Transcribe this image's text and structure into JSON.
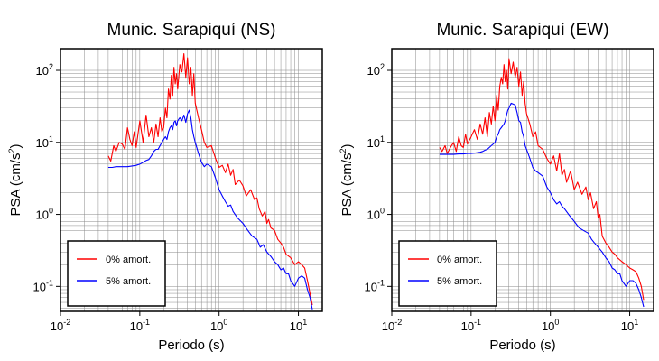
{
  "chart_data": [
    {
      "type": "line",
      "title": "Munic. Sarapiquí (NS)",
      "xlabel": "Periodo (s)",
      "ylabel": "PSA (cm/s²)",
      "xscale": "log",
      "yscale": "log",
      "xlim": [
        0.01,
        20
      ],
      "ylim": [
        0.045,
        200
      ],
      "grid": true,
      "legend_position": "bottom-left",
      "x_ticks": [
        "10-2",
        "10-1",
        "100",
        "101"
      ],
      "y_ticks": [
        "10-1",
        "100",
        "101",
        "102"
      ],
      "series": [
        {
          "name": "0% amort.",
          "color": "#ff0000",
          "x": [
            0.04,
            0.043,
            0.047,
            0.05,
            0.055,
            0.06,
            0.065,
            0.07,
            0.075,
            0.08,
            0.085,
            0.09,
            0.1,
            0.11,
            0.12,
            0.13,
            0.14,
            0.15,
            0.16,
            0.17,
            0.18,
            0.19,
            0.2,
            0.21,
            0.22,
            0.23,
            0.24,
            0.25,
            0.26,
            0.27,
            0.28,
            0.29,
            0.3,
            0.32,
            0.34,
            0.36,
            0.38,
            0.4,
            0.42,
            0.44,
            0.46,
            0.48,
            0.5,
            0.55,
            0.6,
            0.65,
            0.7,
            0.8,
            0.9,
            1.0,
            1.1,
            1.2,
            1.3,
            1.4,
            1.5,
            1.6,
            1.8,
            2.0,
            2.2,
            2.5,
            2.8,
            3.0,
            3.2,
            3.5,
            3.8,
            4.0,
            4.2,
            4.5,
            5.0,
            5.5,
            6.0,
            6.5,
            7.0,
            8.0,
            9.0,
            10.0,
            11.0,
            12.0,
            13.0,
            14.0,
            15.0
          ],
          "values": [
            6.5,
            5.5,
            9.0,
            7.5,
            10.0,
            9.5,
            8.0,
            16.0,
            11.0,
            9.0,
            14.0,
            8.5,
            20.0,
            10.0,
            24.0,
            12.0,
            16.0,
            10.0,
            18.0,
            12.0,
            22.0,
            14.0,
            16.0,
            30.0,
            22.0,
            55.0,
            40.0,
            85.0,
            45.0,
            110.0,
            65.0,
            90.0,
            55.0,
            120.0,
            95.0,
            170.0,
            80.0,
            150.0,
            65.0,
            110.0,
            45.0,
            90.0,
            35.0,
            22.0,
            15.0,
            10.0,
            8.5,
            9.0,
            6.0,
            4.5,
            4.8,
            3.8,
            5.0,
            3.5,
            4.2,
            2.6,
            3.0,
            2.5,
            1.8,
            2.2,
            1.6,
            1.7,
            1.2,
            0.95,
            1.1,
            0.75,
            0.85,
            0.65,
            0.6,
            0.45,
            0.4,
            0.35,
            0.28,
            0.25,
            0.2,
            0.22,
            0.2,
            0.18,
            0.12,
            0.08,
            0.055
          ]
        },
        {
          "name": "5% amort.",
          "color": "#0000ff",
          "x": [
            0.04,
            0.045,
            0.05,
            0.06,
            0.07,
            0.08,
            0.09,
            0.1,
            0.11,
            0.12,
            0.13,
            0.14,
            0.15,
            0.16,
            0.17,
            0.18,
            0.19,
            0.2,
            0.21,
            0.22,
            0.23,
            0.24,
            0.25,
            0.26,
            0.27,
            0.28,
            0.29,
            0.3,
            0.32,
            0.34,
            0.36,
            0.38,
            0.4,
            0.42,
            0.44,
            0.46,
            0.48,
            0.5,
            0.55,
            0.6,
            0.65,
            0.7,
            0.8,
            0.9,
            1.0,
            1.1,
            1.2,
            1.3,
            1.4,
            1.5,
            1.7,
            2.0,
            2.3,
            2.6,
            3.0,
            3.3,
            3.6,
            4.0,
            4.5,
            5.0,
            5.5,
            6.0,
            6.5,
            7.0,
            7.5,
            8.0,
            9.0,
            10.0,
            11.0,
            12.0,
            13.0,
            14.0,
            15.0
          ],
          "values": [
            4.5,
            4.5,
            4.6,
            4.6,
            4.6,
            4.7,
            4.8,
            5.0,
            5.3,
            5.6,
            5.8,
            6.5,
            7.5,
            8.0,
            8.0,
            9.0,
            10.0,
            11.0,
            12.0,
            11.0,
            14.0,
            16.0,
            17.0,
            15.0,
            19.0,
            20.0,
            17.0,
            20.0,
            22.0,
            20.0,
            24.0,
            19.0,
            25.0,
            28.0,
            22.0,
            15.0,
            12.0,
            10.0,
            7.0,
            5.3,
            4.6,
            5.0,
            4.6,
            3.2,
            2.2,
            1.8,
            1.5,
            1.3,
            1.35,
            1.1,
            0.9,
            0.75,
            0.6,
            0.5,
            0.45,
            0.35,
            0.38,
            0.3,
            0.26,
            0.22,
            0.2,
            0.17,
            0.18,
            0.15,
            0.15,
            0.12,
            0.1,
            0.13,
            0.14,
            0.13,
            0.09,
            0.07,
            0.048
          ]
        }
      ]
    },
    {
      "type": "line",
      "title": "Munic. Sarapiquí (EW)",
      "xlabel": "Periodo (s)",
      "ylabel": "PSA (cm/s²)",
      "xscale": "log",
      "yscale": "log",
      "xlim": [
        0.01,
        20
      ],
      "ylim": [
        0.045,
        200
      ],
      "grid": true,
      "legend_position": "bottom-left",
      "x_ticks": [
        "10-2",
        "10-1",
        "100",
        "101"
      ],
      "y_ticks": [
        "10-1",
        "100",
        "101",
        "102"
      ],
      "series": [
        {
          "name": "0% amort.",
          "color": "#ff0000",
          "x": [
            0.04,
            0.043,
            0.047,
            0.05,
            0.055,
            0.06,
            0.065,
            0.07,
            0.075,
            0.08,
            0.085,
            0.09,
            0.1,
            0.11,
            0.12,
            0.13,
            0.14,
            0.15,
            0.16,
            0.17,
            0.18,
            0.19,
            0.2,
            0.21,
            0.22,
            0.23,
            0.24,
            0.25,
            0.26,
            0.27,
            0.28,
            0.29,
            0.3,
            0.32,
            0.34,
            0.36,
            0.38,
            0.4,
            0.42,
            0.44,
            0.46,
            0.48,
            0.5,
            0.55,
            0.6,
            0.65,
            0.7,
            0.8,
            0.9,
            1.0,
            1.1,
            1.2,
            1.3,
            1.4,
            1.5,
            1.6,
            1.8,
            2.0,
            2.2,
            2.5,
            2.8,
            3.0,
            3.2,
            3.5,
            3.8,
            4.0,
            4.2,
            4.5,
            5.0,
            5.5,
            6.0,
            6.5,
            7.0,
            8.0,
            9.0,
            10.0,
            11.0,
            12.0,
            13.0,
            14.0,
            15.0
          ],
          "values": [
            8.5,
            7.5,
            9.0,
            7.0,
            8.5,
            10.0,
            7.5,
            12.0,
            9.0,
            8.5,
            13.0,
            9.5,
            12.0,
            15.0,
            11.0,
            18.0,
            13.0,
            22.0,
            12.0,
            26.0,
            18.0,
            32.0,
            20.0,
            45.0,
            28.0,
            60.0,
            80.0,
            65.0,
            120.0,
            70.0,
            100.0,
            55.0,
            145.0,
            90.0,
            130.0,
            80.0,
            110.0,
            60.0,
            95.0,
            45.0,
            70.0,
            35.0,
            25.0,
            18.0,
            12.0,
            14.0,
            9.0,
            8.0,
            6.0,
            5.0,
            6.5,
            4.0,
            7.0,
            3.5,
            4.2,
            2.8,
            4.0,
            2.2,
            2.8,
            1.9,
            2.4,
            1.6,
            2.0,
            1.2,
            1.5,
            0.9,
            1.0,
            0.5,
            0.4,
            0.35,
            0.3,
            0.28,
            0.25,
            0.22,
            0.2,
            0.18,
            0.17,
            0.16,
            0.13,
            0.1,
            0.065
          ]
        },
        {
          "name": "5% amort.",
          "color": "#0000ff",
          "x": [
            0.04,
            0.045,
            0.05,
            0.06,
            0.07,
            0.08,
            0.09,
            0.1,
            0.11,
            0.12,
            0.13,
            0.14,
            0.15,
            0.16,
            0.17,
            0.18,
            0.19,
            0.2,
            0.21,
            0.22,
            0.23,
            0.24,
            0.25,
            0.26,
            0.27,
            0.28,
            0.29,
            0.3,
            0.32,
            0.34,
            0.36,
            0.38,
            0.4,
            0.42,
            0.44,
            0.46,
            0.48,
            0.5,
            0.55,
            0.6,
            0.65,
            0.7,
            0.8,
            0.9,
            1.0,
            1.1,
            1.2,
            1.3,
            1.4,
            1.5,
            1.7,
            2.0,
            2.3,
            2.6,
            3.0,
            3.3,
            3.6,
            4.0,
            4.5,
            5.0,
            5.5,
            6.0,
            6.5,
            7.0,
            7.5,
            8.0,
            9.0,
            10.0,
            11.0,
            12.0,
            13.0,
            14.0,
            15.0
          ],
          "values": [
            6.8,
            6.8,
            6.8,
            6.8,
            6.9,
            6.9,
            7.0,
            7.0,
            7.1,
            7.2,
            7.3,
            7.5,
            7.8,
            8.0,
            8.5,
            9.0,
            9.5,
            10.0,
            12.0,
            13.0,
            15.0,
            16.0,
            17.0,
            18.0,
            20.0,
            24.0,
            28.0,
            30.0,
            35.0,
            34.0,
            33.0,
            26.0,
            20.0,
            19.0,
            14.0,
            12.0,
            9.0,
            8.0,
            6.0,
            4.5,
            4.0,
            3.8,
            3.4,
            2.4,
            2.0,
            1.6,
            1.4,
            1.5,
            1.3,
            1.2,
            1.0,
            0.8,
            0.65,
            0.6,
            0.55,
            0.45,
            0.4,
            0.35,
            0.3,
            0.25,
            0.22,
            0.18,
            0.17,
            0.15,
            0.15,
            0.12,
            0.1,
            0.12,
            0.12,
            0.11,
            0.09,
            0.07,
            0.052
          ]
        }
      ]
    }
  ]
}
